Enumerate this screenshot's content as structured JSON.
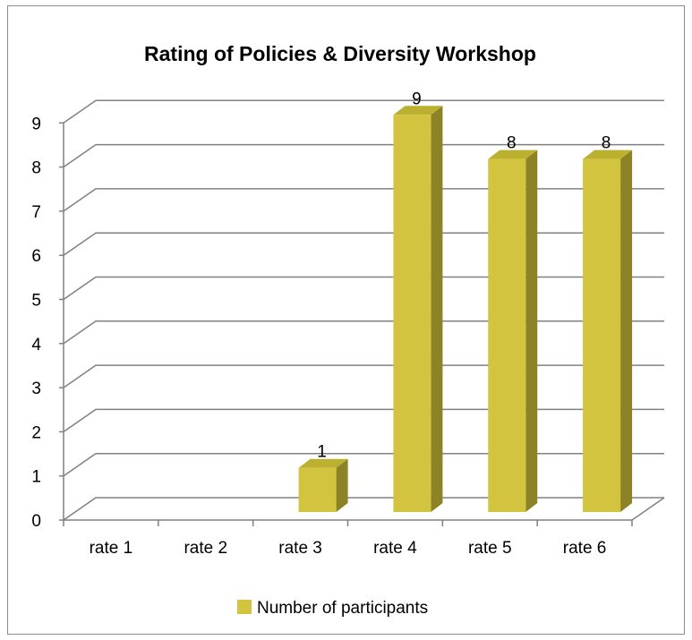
{
  "chart_data": {
    "type": "bar",
    "title": "Rating of Policies & Diversity Workshop",
    "categories": [
      "rate 1",
      "rate 2",
      "rate 3",
      "rate 4",
      "rate 5",
      "rate 6"
    ],
    "series": [
      {
        "name": "Number of participants",
        "values": [
          0,
          0,
          1,
          9,
          8,
          8
        ]
      }
    ],
    "data_labels": [
      "",
      "",
      "1",
      "9",
      "8",
      "8"
    ],
    "ylim": [
      0,
      9
    ],
    "yticks": [
      0,
      1,
      2,
      3,
      4,
      5,
      6,
      7,
      8,
      9
    ],
    "xlabel": "",
    "ylabel": "",
    "grid": true,
    "legend_position": "bottom",
    "style": "3d-column",
    "colors": {
      "bar_front": "#d2c43f",
      "bar_top": "#bcb030",
      "bar_side": "#8c8226",
      "gridline": "#808080",
      "axis": "#808080"
    }
  }
}
